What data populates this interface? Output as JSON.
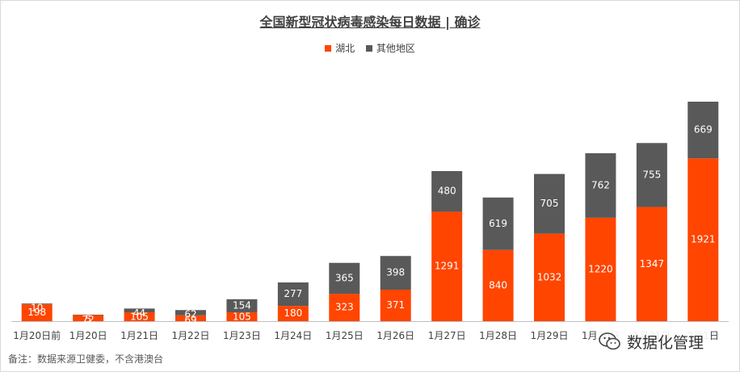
{
  "chart_data": {
    "type": "bar",
    "stacked": true,
    "title": "全国新型冠状病毒感染每日数据 | 确诊",
    "categories": [
      "1月20日前",
      "1月20日",
      "1月21日",
      "1月22日",
      "1月23日",
      "1月24日",
      "1月25日",
      "1月26日",
      "1月27日",
      "1月28日",
      "1月29日",
      "1月30日",
      "1月31日",
      "2月1日"
    ],
    "series": [
      {
        "name": "湖北",
        "color": "#ff4500",
        "values": [
          198,
          72,
          105,
          69,
          105,
          180,
          323,
          371,
          1291,
          840,
          1032,
          1220,
          1347,
          1921
        ]
      },
      {
        "name": "其他地区",
        "color": "#595959",
        "values": [
          10,
          5,
          44,
          62,
          154,
          277,
          365,
          398,
          480,
          619,
          705,
          762,
          755,
          669
        ]
      }
    ],
    "legend_position": "top-center",
    "grid": false,
    "ylim": [
      0,
      2600
    ]
  },
  "footnote": "备注：数据来源卫健委，不含港澳台",
  "watermark": {
    "text": "数据化管理",
    "icon": "wechat-icon"
  }
}
